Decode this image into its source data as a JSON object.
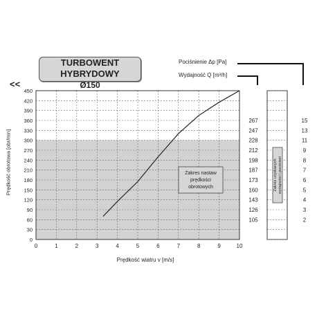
{
  "header": {
    "title_line1": "TURBOWENT HYBRYDOWY",
    "title_line2": "Ø150",
    "pressure_label": "Pociśnienie Δp [Pa]",
    "flow_label": "Wydajność Q [m³/h]",
    "back_symbol": "<<"
  },
  "chart_data": {
    "type": "line",
    "xlabel": "Prędkość wiatru v [m/s]",
    "ylabel": "Prędkość obrotowa [obr/min]",
    "xlim": [
      0,
      10
    ],
    "ylim": [
      0,
      450
    ],
    "x_ticks": [
      0,
      1,
      2,
      3,
      4,
      5,
      6,
      7,
      8,
      9,
      10
    ],
    "y_ticks": [
      0,
      30,
      60,
      90,
      120,
      150,
      180,
      210,
      240,
      270,
      300,
      330,
      360,
      390,
      420,
      450
    ],
    "y_tick_labels": [
      "0",
      "30",
      "60",
      "90",
      "120",
      "150",
      "180",
      "210",
      "240",
      "270",
      "300",
      "330",
      "360",
      "390",
      "420",
      "450"
    ],
    "grid": true,
    "series": [
      {
        "x": [
          3.3,
          4.0,
          5.0,
          6.0,
          7.0,
          8.0,
          9.0,
          10.0
        ],
        "y": [
          70,
          115,
          175,
          250,
          320,
          375,
          415,
          450
        ]
      }
    ],
    "shaded_band": [
      0,
      300
    ],
    "annotation": [
      "Zakres nastaw",
      "prędkości",
      "obrotowych"
    ],
    "pressure_ticks": [
      {
        "y": 360,
        "label": "267"
      },
      {
        "y": 330,
        "label": "247"
      },
      {
        "y": 300,
        "label": "228"
      },
      {
        "y": 270,
        "label": "212"
      },
      {
        "y": 240,
        "label": "198"
      },
      {
        "y": 210,
        "label": "187"
      },
      {
        "y": 180,
        "label": "173"
      },
      {
        "y": 150,
        "label": "160"
      },
      {
        "y": 120,
        "label": "143"
      },
      {
        "y": 90,
        "label": "126"
      },
      {
        "y": 60,
        "label": "105"
      }
    ],
    "flow_ticks": [
      {
        "y": 360,
        "label": "15"
      },
      {
        "y": 330,
        "label": "13"
      },
      {
        "y": 300,
        "label": "11"
      },
      {
        "y": 270,
        "label": "9"
      },
      {
        "y": 240,
        "label": "8"
      },
      {
        "y": 210,
        "label": "7"
      },
      {
        "y": 180,
        "label": "6"
      },
      {
        "y": 150,
        "label": "5"
      },
      {
        "y": 120,
        "label": "4"
      },
      {
        "y": 90,
        "label": "3"
      },
      {
        "y": 60,
        "label": "2"
      }
    ],
    "side_annotation": [
      "Zakres uzyskanych",
      "wydajności i pociśnień"
    ]
  },
  "colors": {
    "band": "#d2d2d2",
    "grid": "#666666",
    "line": "#222222",
    "annotation_box": "#d6d6d6"
  }
}
